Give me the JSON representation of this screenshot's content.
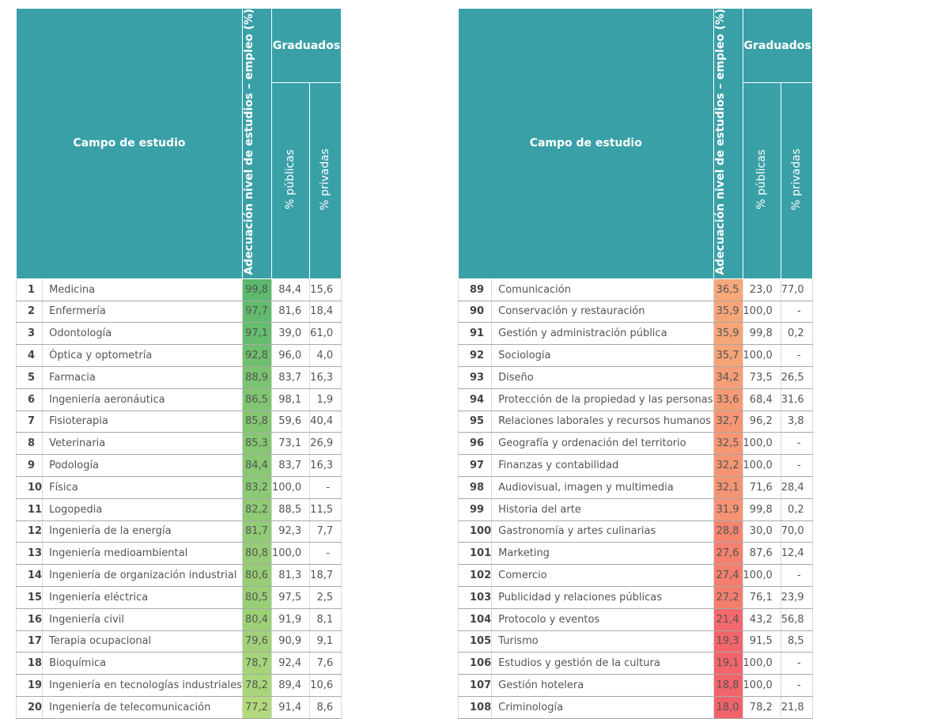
{
  "header": {
    "field": "Campo de estudio",
    "adequacy": "Adecuación nivel de estudios – empleo (%)",
    "graduates": "Graduados",
    "public": "% públicas",
    "private": "% privadas"
  },
  "colors": {
    "header": "#3aa0a8",
    "high_green": "#5cb96b",
    "low_green": "#b2d97c",
    "high_orange": "#f6a87a",
    "low_red": "#f2646c"
  },
  "left_rows": [
    {
      "rank": "1",
      "field": "Medicina",
      "adequacy": "99,8",
      "public": "84,4",
      "private": "15,6",
      "bg": "#5cb96b"
    },
    {
      "rank": "2",
      "field": "Enfermería",
      "adequacy": "97,7",
      "public": "81,6",
      "private": "18,4",
      "bg": "#62bb6c"
    },
    {
      "rank": "3",
      "field": "Odontología",
      "adequacy": "97,1",
      "public": "39,0",
      "private": "61,0",
      "bg": "#65bc6d"
    },
    {
      "rank": "4",
      "field": "Óptica y optometría",
      "adequacy": "92,8",
      "public": "96,0",
      "private": "4,0",
      "bg": "#6ebf6e"
    },
    {
      "rank": "5",
      "field": "Farmacia",
      "adequacy": "88,9",
      "public": "83,7",
      "private": "16,3",
      "bg": "#7ac370"
    },
    {
      "rank": "6",
      "field": "Ingeniería aeronáutica",
      "adequacy": "86,5",
      "public": "98,1",
      "private": "1,9",
      "bg": "#80c571"
    },
    {
      "rank": "7",
      "field": "Fisioterapia",
      "adequacy": "85,8",
      "public": "59,6",
      "private": "40,4",
      "bg": "#83c672"
    },
    {
      "rank": "8",
      "field": "Veterinaria",
      "adequacy": "85,3",
      "public": "73,1",
      "private": "26,9",
      "bg": "#85c772"
    },
    {
      "rank": "9",
      "field": "Podología",
      "adequacy": "84,4",
      "public": "83,7",
      "private": "16,3",
      "bg": "#88c873"
    },
    {
      "rank": "10",
      "field": "Física",
      "adequacy": "83,2",
      "public": "100,0",
      "private": "-",
      "bg": "#8cc974"
    },
    {
      "rank": "11",
      "field": "Logopedia",
      "adequacy": "82,2",
      "public": "88,5",
      "private": "11,5",
      "bg": "#8fca74"
    },
    {
      "rank": "12",
      "field": "Ingeniería de la energía",
      "adequacy": "81,7",
      "public": "92,3",
      "private": "7,7",
      "bg": "#92cb75"
    },
    {
      "rank": "13",
      "field": "Ingeniería medioambiental",
      "adequacy": "80,8",
      "public": "100,0",
      "private": "-",
      "bg": "#95cc75"
    },
    {
      "rank": "14",
      "field": "Ingeniería de organización industrial",
      "adequacy": "80,6",
      "public": "81,3",
      "private": "18,7",
      "bg": "#97cd76"
    },
    {
      "rank": "15",
      "field": "Ingeniería eléctrica",
      "adequacy": "80,5",
      "public": "97,5",
      "private": "2,5",
      "bg": "#99ce76"
    },
    {
      "rank": "16",
      "field": "Ingeniería civil",
      "adequacy": "80,4",
      "public": "91,9",
      "private": "8,1",
      "bg": "#9cd077"
    },
    {
      "rank": "17",
      "field": "Terapia ocupacional",
      "adequacy": "79,6",
      "public": "90,9",
      "private": "9,1",
      "bg": "#a0d178"
    },
    {
      "rank": "18",
      "field": "Bioquímica",
      "adequacy": "78,7",
      "public": "92,4",
      "private": "7,6",
      "bg": "#a5d479"
    },
    {
      "rank": "19",
      "field": "Ingeniería en tecnologías industriales",
      "adequacy": "78,2",
      "public": "89,4",
      "private": "10,6",
      "bg": "#aad67a"
    },
    {
      "rank": "20",
      "field": "Ingeniería de telecomunicación",
      "adequacy": "77,2",
      "public": "91,4",
      "private": "8,6",
      "bg": "#b2d97c"
    }
  ],
  "right_rows": [
    {
      "rank": "89",
      "field": "Comunicación",
      "adequacy": "36,5",
      "public": "23,0",
      "private": "77,0",
      "bg": "#f6a87a"
    },
    {
      "rank": "90",
      "field": "Conservación y restauración",
      "adequacy": "35,9",
      "public": "100,0",
      "private": "-",
      "bg": "#f6a579"
    },
    {
      "rank": "91",
      "field": "Gestión y administración pública",
      "adequacy": "35,9",
      "public": "99,8",
      "private": "0,2",
      "bg": "#f6a579"
    },
    {
      "rank": "92",
      "field": "Sociología",
      "adequacy": "35,7",
      "public": "100,0",
      "private": "-",
      "bg": "#f6a378"
    },
    {
      "rank": "93",
      "field": "Diseño",
      "adequacy": "34,2",
      "public": "73,5",
      "private": "26,5",
      "bg": "#f59e77"
    },
    {
      "rank": "94",
      "field": "Protección de la propiedad y las personas",
      "adequacy": "33,6",
      "public": "68,4",
      "private": "31,6",
      "bg": "#f59b76"
    },
    {
      "rank": "95",
      "field": "Relaciones laborales y recursos humanos",
      "adequacy": "32,7",
      "public": "96,2",
      "private": "3,8",
      "bg": "#f59775"
    },
    {
      "rank": "96",
      "field": "Geografía y ordenación del territorio",
      "adequacy": "32,5",
      "public": "100,0",
      "private": "-",
      "bg": "#f59675"
    },
    {
      "rank": "97",
      "field": "Finanzas y contabilidad",
      "adequacy": "32,2",
      "public": "100,0",
      "private": "-",
      "bg": "#f59574"
    },
    {
      "rank": "98",
      "field": "Audiovisual, imagen y multimedia",
      "adequacy": "32,1",
      "public": "71,6",
      "private": "28,4",
      "bg": "#f59474"
    },
    {
      "rank": "99",
      "field": "Historia del arte",
      "adequacy": "31,9",
      "public": "99,8",
      "private": "0,2",
      "bg": "#f59374"
    },
    {
      "rank": "100",
      "field": "Gastronomía y artes culinarias",
      "adequacy": "28,8",
      "public": "30,0",
      "private": "70,0",
      "bg": "#f4856f"
    },
    {
      "rank": "101",
      "field": "Marketing",
      "adequacy": "27,6",
      "public": "87,6",
      "private": "12,4",
      "bg": "#f4806e"
    },
    {
      "rank": "102",
      "field": "Comercio",
      "adequacy": "27,4",
      "public": "100,0",
      "private": "-",
      "bg": "#f47f6e"
    },
    {
      "rank": "103",
      "field": "Publicidad y relaciones públicas",
      "adequacy": "27,2",
      "public": "76,1",
      "private": "23,9",
      "bg": "#f47e6e"
    },
    {
      "rank": "104",
      "field": "Protocolo y eventos",
      "adequacy": "21,4",
      "public": "43,2",
      "private": "56,8",
      "bg": "#f3696c"
    },
    {
      "rank": "105",
      "field": "Turismo",
      "adequacy": "19,3",
      "public": "91,5",
      "private": "8,5",
      "bg": "#f2666c"
    },
    {
      "rank": "106",
      "field": "Estudios y gestión de la cultura",
      "adequacy": "19,1",
      "public": "100,0",
      "private": "-",
      "bg": "#f2656c"
    },
    {
      "rank": "107",
      "field": "Gestión hotelera",
      "adequacy": "18,8",
      "public": "100,0",
      "private": "-",
      "bg": "#f2646c"
    },
    {
      "rank": "108",
      "field": "Criminología",
      "adequacy": "18,0",
      "public": "78,2",
      "private": "21,8",
      "bg": "#f2626c"
    }
  ]
}
